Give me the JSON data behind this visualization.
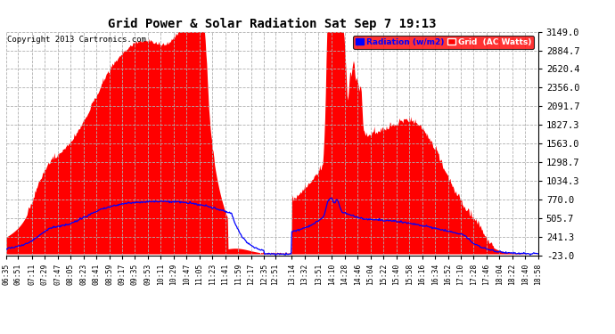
{
  "title": "Grid Power & Solar Radiation Sat Sep 7 19:13",
  "copyright": "Copyright 2013 Cartronics.com",
  "yticks": [
    3149.0,
    2884.7,
    2620.4,
    2356.0,
    2091.7,
    1827.3,
    1563.0,
    1298.7,
    1034.3,
    770.0,
    505.7,
    241.3,
    -23.0
  ],
  "ymin": -23.0,
  "ymax": 3149.0,
  "bg_color": "#ffffff",
  "plot_bg_color": "#ffffff",
  "grid_color": "#b0b0b0",
  "red_fill_color": "#ff0000",
  "blue_line_color": "#0000ff",
  "xtick_labels": [
    "06:35",
    "06:51",
    "07:11",
    "07:29",
    "07:47",
    "08:05",
    "08:23",
    "08:41",
    "08:59",
    "09:17",
    "09:35",
    "09:53",
    "10:11",
    "10:29",
    "10:47",
    "11:05",
    "11:23",
    "11:41",
    "11:59",
    "12:17",
    "12:35",
    "12:51",
    "13:14",
    "13:32",
    "13:51",
    "14:10",
    "14:28",
    "14:46",
    "15:04",
    "15:22",
    "15:40",
    "15:58",
    "16:16",
    "16:34",
    "16:52",
    "17:10",
    "17:28",
    "17:46",
    "18:04",
    "18:22",
    "18:40",
    "18:58"
  ]
}
